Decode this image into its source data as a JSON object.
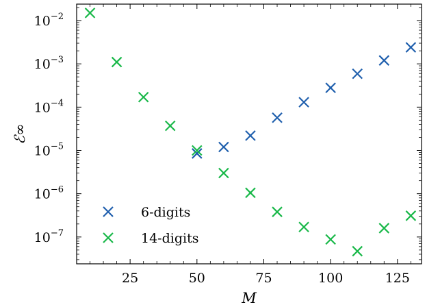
{
  "chart_data": {
    "type": "scatter",
    "xlabel": "M",
    "ylabel": "ℰ∞",
    "xlim": [
      5,
      134
    ],
    "ylim_log10": [
      -7.62,
      -1.62
    ],
    "yscale": "log",
    "x_ticks": [
      25,
      50,
      75,
      100,
      125
    ],
    "x_tick_labels": [
      "25",
      "50",
      "75",
      "100",
      "125"
    ],
    "y_ticks_exp": [
      -7,
      -6,
      -5,
      -4,
      -3,
      -2
    ],
    "y_tick_labels": [
      "10",
      "10",
      "10",
      "10",
      "10",
      "10"
    ],
    "y_tick_exponents": [
      "−7",
      "−6",
      "−5",
      "−4",
      "−3",
      "−2"
    ],
    "grid": false,
    "legend_position": "lower-left",
    "marker": "x",
    "series": [
      {
        "name": "6-digits",
        "color": "#1f5fad",
        "points": [
          {
            "x": 50,
            "y": 8.5e-06
          },
          {
            "x": 60,
            "y": 1.2e-05
          },
          {
            "x": 70,
            "y": 2.2e-05
          },
          {
            "x": 80,
            "y": 5.7e-05
          },
          {
            "x": 90,
            "y": 0.00013
          },
          {
            "x": 100,
            "y": 0.00028
          },
          {
            "x": 110,
            "y": 0.00059
          },
          {
            "x": 120,
            "y": 0.0012
          },
          {
            "x": 130,
            "y": 0.0024
          }
        ]
      },
      {
        "name": "14-digits",
        "color": "#19b849",
        "points": [
          {
            "x": 10,
            "y": 0.015
          },
          {
            "x": 20,
            "y": 0.0011
          },
          {
            "x": 30,
            "y": 0.00017
          },
          {
            "x": 40,
            "y": 3.7e-05
          },
          {
            "x": 50,
            "y": 1e-05
          },
          {
            "x": 60,
            "y": 3e-06
          },
          {
            "x": 70,
            "y": 1.05e-06
          },
          {
            "x": 80,
            "y": 3.8e-07
          },
          {
            "x": 90,
            "y": 1.7e-07
          },
          {
            "x": 100,
            "y": 8.8e-08
          },
          {
            "x": 110,
            "y": 4.7e-08
          },
          {
            "x": 120,
            "y": 1.6e-07
          },
          {
            "x": 130,
            "y": 3.1e-07
          }
        ]
      }
    ]
  }
}
